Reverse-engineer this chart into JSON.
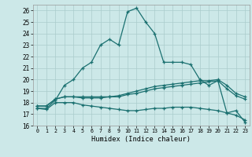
{
  "title": "",
  "xlabel": "Humidex (Indice chaleur)",
  "bg_color": "#cce8e8",
  "grid_color": "#aacccc",
  "line_color": "#1a7070",
  "xlim": [
    -0.5,
    23.5
  ],
  "ylim": [
    16,
    26.5
  ],
  "yticks": [
    16,
    17,
    18,
    19,
    20,
    21,
    22,
    23,
    24,
    25,
    26
  ],
  "xticks": [
    0,
    1,
    2,
    3,
    4,
    5,
    6,
    7,
    8,
    9,
    10,
    11,
    12,
    13,
    14,
    15,
    16,
    17,
    18,
    19,
    20,
    21,
    22,
    23
  ],
  "line1_x": [
    0,
    1,
    2,
    3,
    4,
    5,
    6,
    7,
    8,
    9,
    10,
    11,
    12,
    13,
    14,
    15,
    16,
    17,
    18,
    19,
    20,
    21,
    22,
    23
  ],
  "line1_y": [
    17.5,
    17.5,
    18.2,
    19.5,
    20.0,
    21.0,
    21.5,
    23.0,
    23.5,
    23.0,
    25.9,
    26.2,
    25.0,
    24.0,
    21.5,
    21.5,
    21.5,
    21.3,
    20.0,
    19.5,
    19.9,
    17.1,
    17.3,
    16.3
  ],
  "line2_x": [
    0,
    1,
    2,
    3,
    4,
    5,
    6,
    7,
    8,
    9,
    10,
    11,
    12,
    13,
    14,
    15,
    16,
    17,
    18,
    19,
    20,
    21,
    22,
    23
  ],
  "line2_y": [
    17.7,
    17.7,
    18.3,
    18.5,
    18.5,
    18.5,
    18.5,
    18.5,
    18.5,
    18.6,
    18.8,
    19.0,
    19.2,
    19.4,
    19.5,
    19.6,
    19.7,
    19.8,
    19.9,
    19.9,
    20.0,
    19.5,
    18.8,
    18.5
  ],
  "line3_x": [
    0,
    1,
    2,
    3,
    4,
    5,
    6,
    7,
    8,
    9,
    10,
    11,
    12,
    13,
    14,
    15,
    16,
    17,
    18,
    19,
    20,
    21,
    22,
    23
  ],
  "line3_y": [
    17.7,
    17.7,
    18.3,
    18.5,
    18.5,
    18.4,
    18.4,
    18.4,
    18.5,
    18.5,
    18.7,
    18.8,
    19.0,
    19.2,
    19.3,
    19.4,
    19.5,
    19.6,
    19.7,
    19.8,
    19.9,
    19.2,
    18.6,
    18.3
  ],
  "line4_x": [
    0,
    1,
    2,
    3,
    4,
    5,
    6,
    7,
    8,
    9,
    10,
    11,
    12,
    13,
    14,
    15,
    16,
    17,
    18,
    19,
    20,
    21,
    22,
    23
  ],
  "line4_y": [
    17.5,
    17.4,
    18.0,
    18.0,
    18.0,
    17.8,
    17.7,
    17.6,
    17.5,
    17.4,
    17.3,
    17.3,
    17.4,
    17.5,
    17.5,
    17.6,
    17.6,
    17.6,
    17.5,
    17.4,
    17.3,
    17.1,
    16.9,
    16.5
  ]
}
